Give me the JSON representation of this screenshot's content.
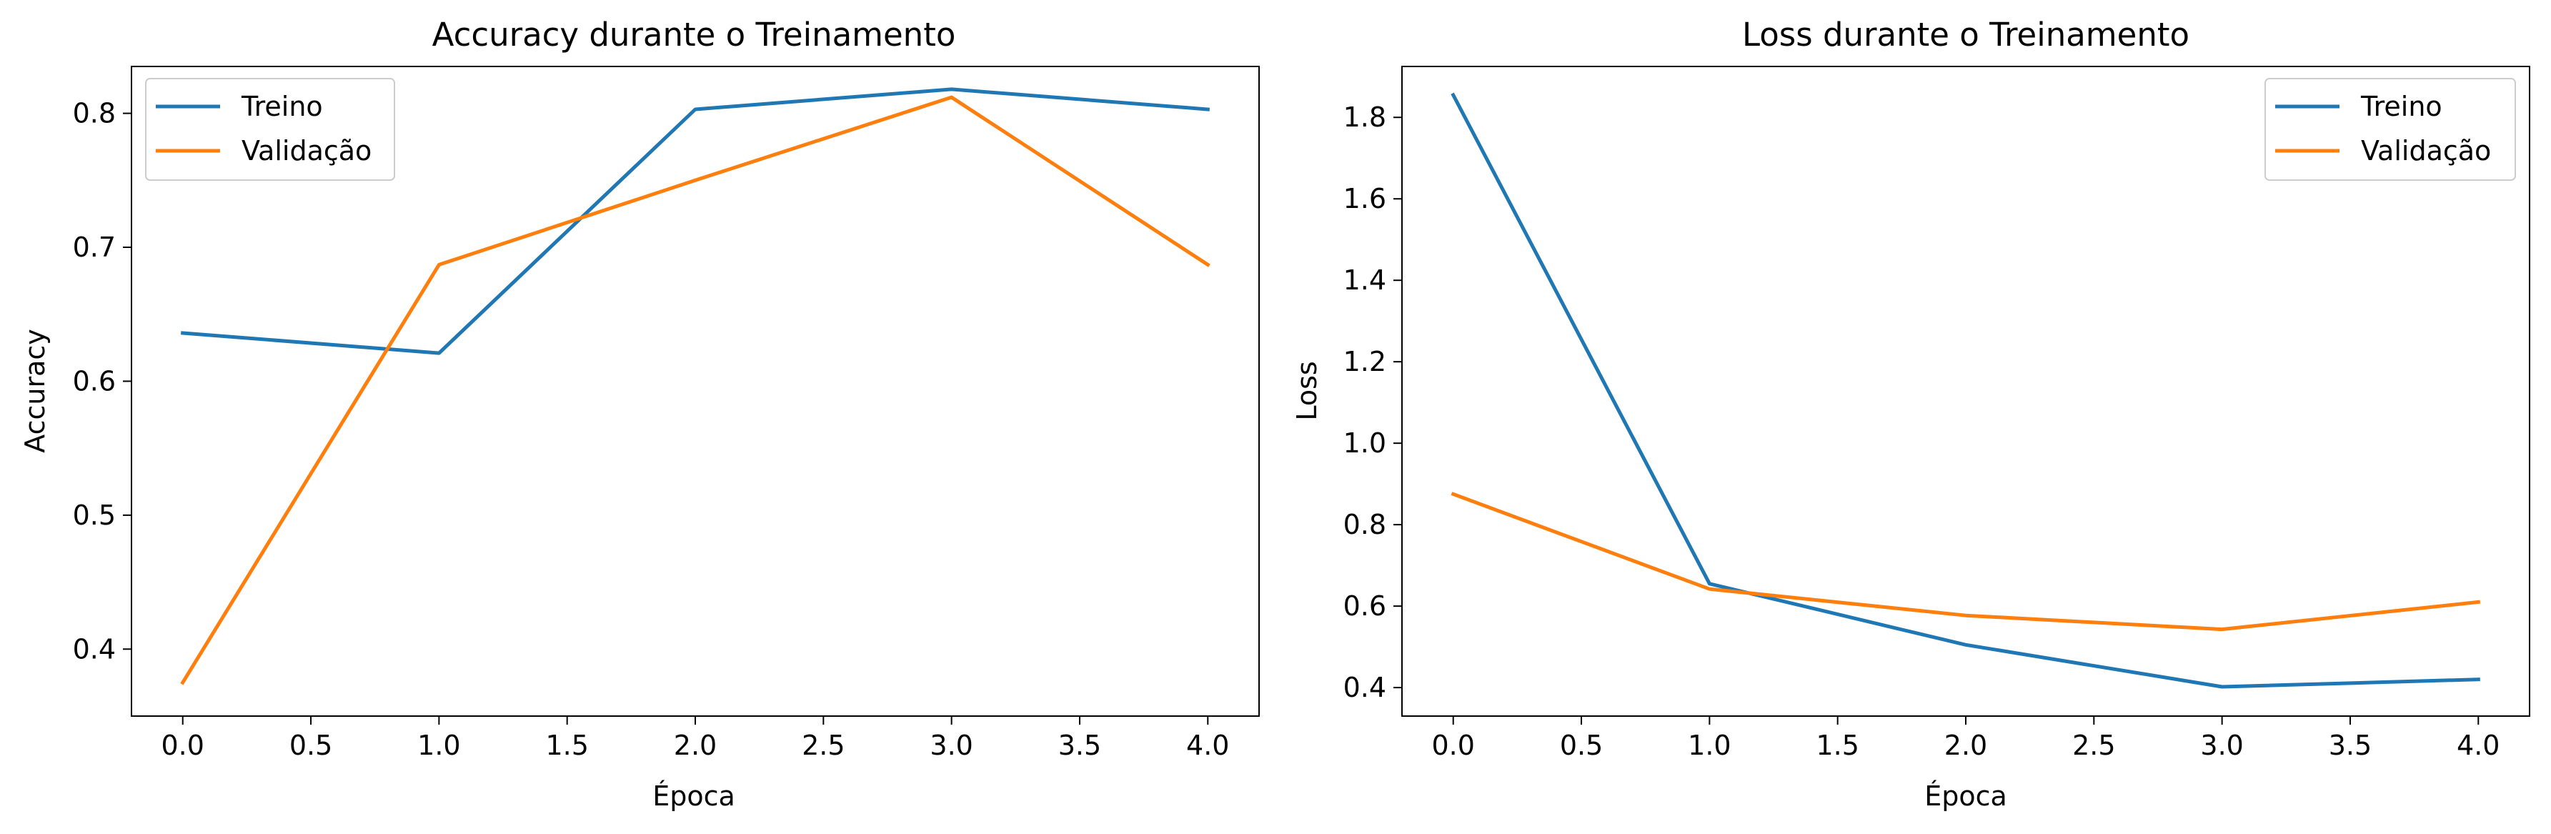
{
  "chart_data": [
    {
      "type": "line",
      "title": "Accuracy durante o Treinamento",
      "xlabel": "Época",
      "ylabel": "Accuracy",
      "xlim": [
        -0.2,
        4.2
      ],
      "ylim": [
        0.35,
        0.835
      ],
      "x_ticks": [
        "0.0",
        "0.5",
        "1.0",
        "1.5",
        "2.0",
        "2.5",
        "3.0",
        "3.5",
        "4.0"
      ],
      "y_ticks": [
        "0.4",
        "0.5",
        "0.6",
        "0.7",
        "0.8"
      ],
      "grid": false,
      "legend_position": "upper left",
      "x": [
        0,
        1,
        2,
        3,
        4
      ],
      "series": [
        {
          "name": "Treino",
          "color": "#1f77b4",
          "values": [
            0.636,
            0.621,
            0.803,
            0.818,
            0.803
          ]
        },
        {
          "name": "Validação",
          "color": "#ff7f0e",
          "values": [
            0.375,
            0.687,
            0.75,
            0.812,
            0.687
          ]
        }
      ]
    },
    {
      "type": "line",
      "title": "Loss durante o Treinamento",
      "xlabel": "Época",
      "ylabel": "Loss",
      "xlim": [
        -0.2,
        4.2
      ],
      "ylim": [
        0.33,
        1.925
      ],
      "x_ticks": [
        "0.0",
        "0.5",
        "1.0",
        "1.5",
        "2.0",
        "2.5",
        "3.0",
        "3.5",
        "4.0"
      ],
      "y_ticks": [
        "0.4",
        "0.6",
        "0.8",
        "1.0",
        "1.2",
        "1.4",
        "1.6",
        "1.8"
      ],
      "grid": false,
      "legend_position": "upper right",
      "x": [
        0,
        1,
        2,
        3,
        4
      ],
      "series": [
        {
          "name": "Treino",
          "color": "#1f77b4",
          "values": [
            1.855,
            0.655,
            0.505,
            0.402,
            0.42
          ]
        },
        {
          "name": "Validação",
          "color": "#ff7f0e",
          "values": [
            0.875,
            0.642,
            0.577,
            0.543,
            0.61
          ]
        }
      ]
    }
  ]
}
